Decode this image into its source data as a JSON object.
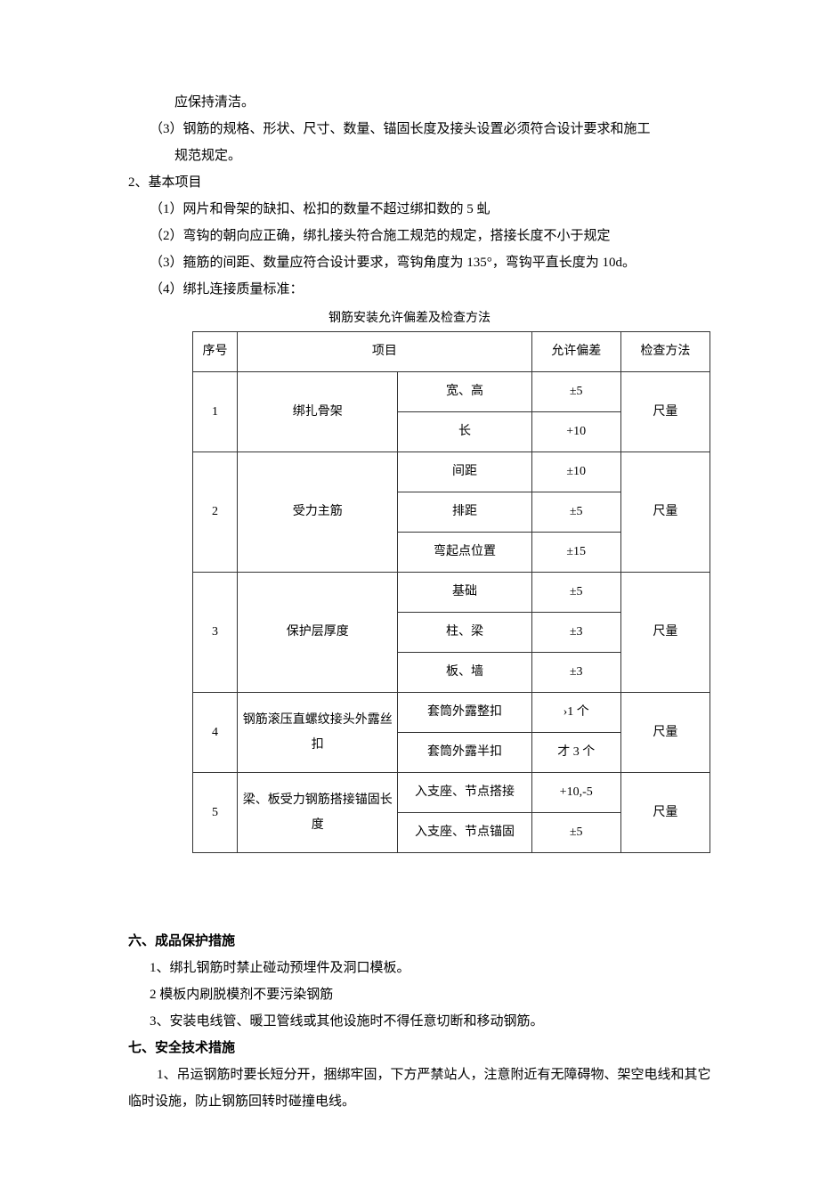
{
  "pre_lines": [
    {
      "cls": "indent-5",
      "text": "应保持清洁。"
    },
    {
      "cls": "indent-3",
      "text": "（3）钢筋的规格、形状、尺寸、数量、锚固长度及接头设置必须符合设计要求和施工"
    },
    {
      "cls": "indent-5",
      "text": "规范规定。"
    },
    {
      "cls": "indent-2",
      "text": "2、基本项目"
    },
    {
      "cls": "indent-3",
      "text": "（1）网片和骨架的缺扣、松扣的数量不超过绑扣数的 5 虬"
    },
    {
      "cls": "indent-3",
      "text": "（2）弯钩的朝向应正确，绑扎接头符合施工规范的规定，搭接长度不小于规定"
    },
    {
      "cls": "indent-3",
      "text": "（3）箍筋的间距、数量应符合设计要求，弯钩角度为 135°，弯钩平直长度为 10d。"
    },
    {
      "cls": "indent-3",
      "text": "（4）绑扎连接质量标准："
    }
  ],
  "table_caption": "钢筋安装允许偏差及检查方法",
  "header": {
    "seq": "序号",
    "item": "项目",
    "dev": "允许偏差",
    "method": "检查方法"
  },
  "rows": [
    {
      "seq": "1",
      "item": "绑扎骨架",
      "subs": [
        {
          "sub": "宽、高",
          "dev": "±5"
        },
        {
          "sub": "长",
          "dev": "+10"
        }
      ],
      "method": "尺量"
    },
    {
      "seq": "2",
      "item": "受力主筋",
      "subs": [
        {
          "sub": "间距",
          "dev": "±10"
        },
        {
          "sub": "排距",
          "dev": "±5"
        },
        {
          "sub": "弯起点位置",
          "dev": "±15"
        }
      ],
      "method": "尺量"
    },
    {
      "seq": "3",
      "item": "保护层厚度",
      "subs": [
        {
          "sub": "基础",
          "dev": "±5"
        },
        {
          "sub": "柱、梁",
          "dev": "±3"
        },
        {
          "sub": "板、墙",
          "dev": "±3"
        }
      ],
      "method": "尺量"
    },
    {
      "seq": "4",
      "item": "钢筋滚压直螺纹接头外露丝扣",
      "subs": [
        {
          "sub": "套筒外露整扣",
          "dev": "›1 个"
        },
        {
          "sub": "套筒外露半扣",
          "dev": "才 3 个"
        }
      ],
      "method": "尺量"
    },
    {
      "seq": "5",
      "item": "梁、板受力钢筋搭接锚固长度",
      "subs": [
        {
          "sub": "入支座、节点搭接",
          "dev": "+10,-5"
        },
        {
          "sub": "入支座、节点锚固",
          "dev": "±5"
        }
      ],
      "method": "尺量"
    }
  ],
  "post_sections": [
    {
      "heading": "六、成品保护措施",
      "items": [
        "1、绑扎钢筋时禁止碰动预埋件及洞口模板。",
        "2 模板内刷脱模剂不要污染钢筋",
        "3、安装电线管、暖卫管线或其他设施时不得任意切断和移动钢筋。"
      ]
    },
    {
      "heading": "七、安全技术措施",
      "items": [
        "1、吊运钢筋时要长短分开，捆绑牢固，下方严禁站人，注意附近有无障碍物、架空电线和其它临时设施，防止钢筋回转时碰撞电线。"
      ],
      "paragraph": true
    }
  ]
}
